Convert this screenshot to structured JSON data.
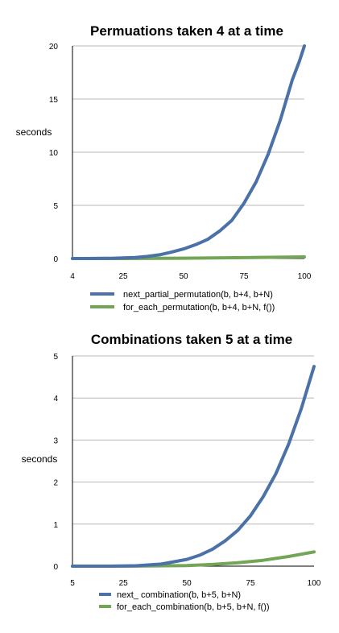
{
  "chart_data": [
    {
      "type": "line",
      "title": "Permuations taken 4 at a time",
      "xlabel": "",
      "ylabel": "seconds",
      "xlim": [
        4,
        100
      ],
      "ylim": [
        0,
        20
      ],
      "xticks": [
        4,
        25,
        50,
        75,
        100
      ],
      "yticks": [
        0,
        5,
        10,
        15,
        20
      ],
      "grid": true,
      "legend_position": "bottom",
      "series": [
        {
          "name": "next_partial_permutation(b, b+4, b+N)",
          "color": "#4a72a8",
          "x": [
            4,
            10,
            20,
            25,
            30,
            35,
            40,
            45,
            50,
            55,
            60,
            65,
            70,
            75,
            80,
            85,
            90,
            95,
            98,
            100
          ],
          "y": [
            0,
            0,
            0.02,
            0.05,
            0.1,
            0.2,
            0.35,
            0.6,
            0.9,
            1.3,
            1.8,
            2.6,
            3.6,
            5.2,
            7.2,
            9.8,
            13.0,
            16.8,
            18.6,
            20.0
          ]
        },
        {
          "name": "for_each_permutation(b, b+4, b+N, f())",
          "color": "#73a556",
          "x": [
            4,
            25,
            50,
            75,
            100
          ],
          "y": [
            0,
            0,
            0.03,
            0.08,
            0.15
          ]
        }
      ]
    },
    {
      "type": "line",
      "title": "Combinations taken 5 at a time",
      "xlabel": "",
      "ylabel": "seconds",
      "xlim": [
        5,
        100
      ],
      "ylim": [
        0,
        5
      ],
      "xticks": [
        5,
        25,
        50,
        75,
        100
      ],
      "yticks": [
        0,
        1,
        2,
        3,
        4,
        5
      ],
      "grid": true,
      "legend_position": "bottom",
      "series": [
        {
          "name": "next_ combination(b, b+5, b+N)",
          "color": "#4a72a8",
          "x": [
            5,
            20,
            30,
            40,
            50,
            55,
            60,
            65,
            70,
            75,
            80,
            85,
            90,
            95,
            100
          ],
          "y": [
            0,
            0,
            0.01,
            0.05,
            0.16,
            0.26,
            0.4,
            0.6,
            0.85,
            1.2,
            1.65,
            2.2,
            2.9,
            3.75,
            4.75
          ]
        },
        {
          "name": "for_each_combination(b, b+5, b+N, f())",
          "color": "#73a556",
          "x": [
            5,
            30,
            50,
            60,
            70,
            80,
            90,
            100
          ],
          "y": [
            0,
            0.001,
            0.015,
            0.04,
            0.08,
            0.14,
            0.23,
            0.34
          ]
        }
      ]
    }
  ]
}
